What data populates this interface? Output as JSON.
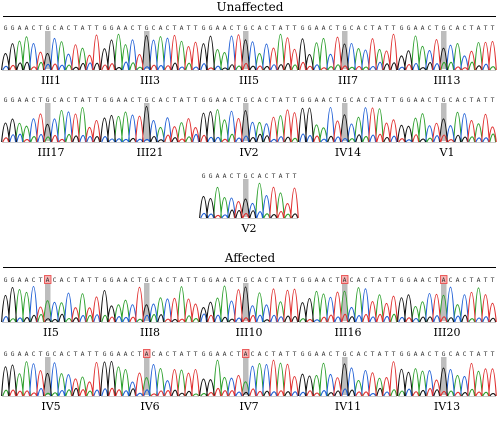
{
  "colors": {
    "A": "#2ca02c",
    "C": "#1f5fd6",
    "G": "#111111",
    "T": "#e03030",
    "highlight": "#bdbdbd",
    "mutant_box": "#e84040"
  },
  "groups": [
    {
      "title": "Unaffected",
      "samples": [
        {
          "label": "III1",
          "sequence": "GGAACTGCACTATT",
          "base": "G",
          "mutant": false
        },
        {
          "label": "III3",
          "sequence": "GGAACTGCACTATT",
          "base": "G",
          "mutant": false
        },
        {
          "label": "III5",
          "sequence": "GGAACTGCACTATT",
          "base": "G",
          "mutant": false
        },
        {
          "label": "III7",
          "sequence": "GGAACTGCACTATT",
          "base": "G",
          "mutant": false
        },
        {
          "label": "III13",
          "sequence": "GGAACTGCACTATT",
          "base": "G",
          "mutant": false
        },
        {
          "label": "III17",
          "sequence": "GGAACTGCACTATT",
          "base": "G",
          "mutant": false
        },
        {
          "label": "III21",
          "sequence": "GGAACTGCACTATT",
          "base": "G",
          "mutant": false
        },
        {
          "label": "IV2",
          "sequence": "GGAACTGCACTATT",
          "base": "G",
          "mutant": false
        },
        {
          "label": "IV14",
          "sequence": "GGAACTGCACTATT",
          "base": "G",
          "mutant": false
        },
        {
          "label": "V1",
          "sequence": "GGAACTGCACTATT",
          "base": "G",
          "mutant": false
        },
        {
          "label": "V2",
          "sequence": "GGAACTGCACTATT",
          "base": "G",
          "mutant": false
        }
      ]
    },
    {
      "title": "Affected",
      "samples": [
        {
          "label": "II5",
          "sequence": "GGAACTACACTATT",
          "base": "A",
          "mutant": true
        },
        {
          "label": "III8",
          "sequence": "GGAACTGCACTATT",
          "base": "G",
          "mutant": false
        },
        {
          "label": "III10",
          "sequence": "GGAACTGCACTATT",
          "base": "G",
          "mutant": false
        },
        {
          "label": "III16",
          "sequence": "GGAACTACACTATT",
          "base": "A",
          "mutant": true
        },
        {
          "label": "III20",
          "sequence": "GGAACTACACTATT",
          "base": "A",
          "mutant": true
        },
        {
          "label": "IV5",
          "sequence": "GGAACTGCACTATT",
          "base": "G",
          "mutant": false
        },
        {
          "label": "IV6",
          "sequence": "GGAACTACACTATT",
          "base": "A",
          "mutant": true
        },
        {
          "label": "IV7",
          "sequence": "GGAACTACACTATT",
          "base": "A",
          "mutant": true
        },
        {
          "label": "IV11",
          "sequence": "GGAACTGCACTATT",
          "base": "G",
          "mutant": false
        },
        {
          "label": "IV13",
          "sequence": "GGAACTGCACTATT",
          "base": "G",
          "mutant": false
        }
      ]
    }
  ]
}
